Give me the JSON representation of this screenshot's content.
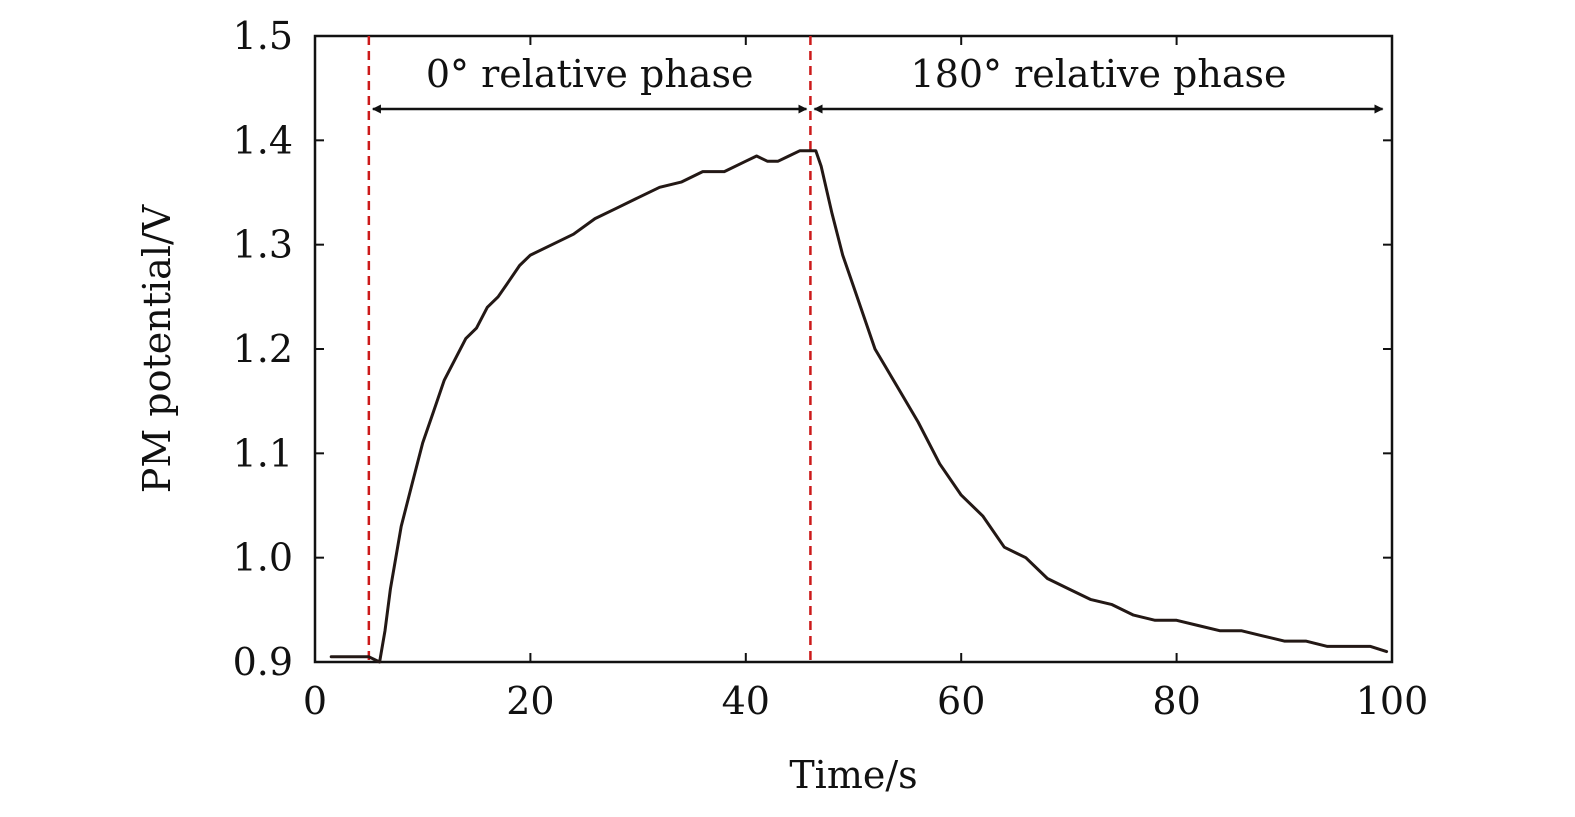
{
  "chart_data": {
    "type": "line",
    "title": "",
    "xlabel": "Time/s",
    "ylabel": "PM potential/V",
    "xlim": [
      0,
      100
    ],
    "ylim": [
      0.9,
      1.5
    ],
    "x_ticks": [
      0,
      20,
      40,
      60,
      80,
      100
    ],
    "x_tick_labels": [
      "0",
      "20",
      "40",
      "60",
      "80",
      "100"
    ],
    "y_ticks": [
      0.9,
      1.0,
      1.1,
      1.2,
      1.3,
      1.4,
      1.5
    ],
    "y_tick_labels": [
      "0.9",
      "1.0",
      "1.1",
      "1.2",
      "1.3",
      "1.4",
      "1.5"
    ],
    "grid": false,
    "series": [
      {
        "name": "PM potential",
        "color": "#231815",
        "x": [
          1.5,
          5,
          6,
          6.5,
          7,
          7.5,
          8,
          9,
          10,
          11,
          12,
          13,
          14,
          15,
          16,
          17,
          18,
          19,
          20,
          22,
          24,
          26,
          28,
          30,
          32,
          34,
          36,
          38,
          40,
          41,
          42,
          43,
          44,
          45,
          46,
          46.5,
          47,
          48,
          49,
          50,
          52,
          54,
          56,
          58,
          60,
          62,
          64,
          66,
          68,
          70,
          72,
          74,
          76,
          78,
          80,
          82,
          84,
          86,
          88,
          90,
          92,
          94,
          96,
          98,
          99.5
        ],
        "y": [
          0.905,
          0.905,
          0.9,
          0.93,
          0.97,
          1.0,
          1.03,
          1.07,
          1.11,
          1.14,
          1.17,
          1.19,
          1.21,
          1.22,
          1.24,
          1.25,
          1.265,
          1.28,
          1.29,
          1.3,
          1.31,
          1.325,
          1.335,
          1.345,
          1.355,
          1.36,
          1.37,
          1.37,
          1.38,
          1.385,
          1.38,
          1.38,
          1.385,
          1.39,
          1.39,
          1.39,
          1.375,
          1.33,
          1.29,
          1.26,
          1.2,
          1.165,
          1.13,
          1.09,
          1.06,
          1.04,
          1.01,
          1.0,
          0.98,
          0.97,
          0.96,
          0.955,
          0.945,
          0.94,
          0.94,
          0.935,
          0.93,
          0.93,
          0.925,
          0.92,
          0.92,
          0.915,
          0.915,
          0.915,
          0.91
        ]
      }
    ],
    "vlines": [
      {
        "x": 5,
        "color": "#cc1a1a",
        "style": "dashed"
      },
      {
        "x": 46,
        "color": "#cc1a1a",
        "style": "dashed"
      }
    ],
    "annotations": [
      {
        "text": "0° relative phase",
        "x_start": 5,
        "x_end": 46,
        "y": 1.43
      },
      {
        "text": "180° relative phase",
        "x_start": 46,
        "x_end": 99.5,
        "y": 1.43
      }
    ]
  }
}
